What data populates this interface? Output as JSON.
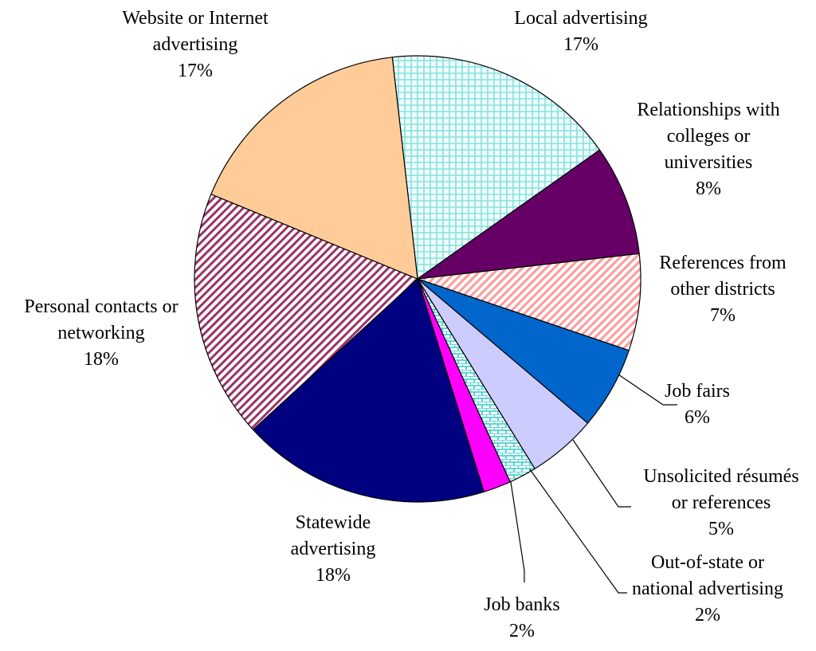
{
  "chart_data": {
    "type": "pie",
    "title": "",
    "slices": [
      {
        "label": [
          "Local advertising"
        ],
        "value_label": "17%",
        "value": 17,
        "color": "#ccffff",
        "pattern": "grid"
      },
      {
        "label": [
          "Relationships with",
          "colleges or",
          "universities"
        ],
        "value_label": "8%",
        "value": 8,
        "color": "#660066",
        "pattern": "solid"
      },
      {
        "label": [
          "References from",
          "other districts"
        ],
        "value_label": "7%",
        "value": 7,
        "color": "#ff9999",
        "pattern": "diagonal"
      },
      {
        "label": [
          "Job fairs"
        ],
        "value_label": "6%",
        "value": 6,
        "color": "#0066cc",
        "pattern": "solid"
      },
      {
        "label": [
          "Unsolicited résumés",
          "or references"
        ],
        "value_label": "5%",
        "value": 5,
        "color": "#ccccff",
        "pattern": "solid"
      },
      {
        "label": [
          "Out-of-state or",
          "national advertising"
        ],
        "value_label": "2%",
        "value": 2,
        "color": "#33cccc",
        "pattern": "brick"
      },
      {
        "label": [
          "Job banks"
        ],
        "value_label": "2%",
        "value": 2,
        "color": "#ff00ff",
        "pattern": "solid"
      },
      {
        "label": [
          "Statewide",
          "advertising"
        ],
        "value_label": "18%",
        "value": 18,
        "color": "#000080",
        "pattern": "solid"
      },
      {
        "label": [
          "Personal contacts or",
          "networking"
        ],
        "value_label": "18%",
        "value": 18,
        "color": "#993366",
        "pattern": "diagonal"
      },
      {
        "label": [
          "Website or Internet",
          "advertising"
        ],
        "value_label": "17%",
        "value": 17,
        "color": "#ffcc99",
        "pattern": "solid"
      }
    ]
  }
}
